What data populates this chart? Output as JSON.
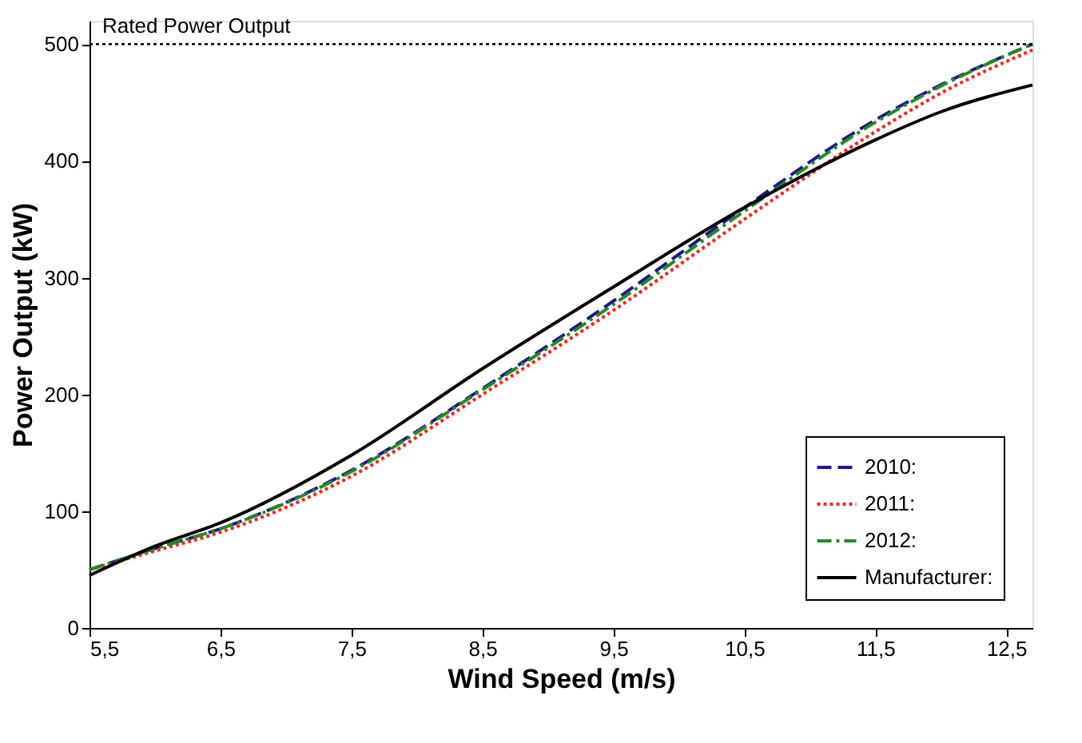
{
  "chart_data": {
    "type": "line",
    "xlabel": "Wind Speed (m/s)",
    "ylabel": "Power Output (kW)",
    "xlim": [
      5.5,
      12.7
    ],
    "ylim": [
      0,
      520
    ],
    "xticks": [
      {
        "value": 5.5,
        "label": "5,5"
      },
      {
        "value": 6.5,
        "label": "6,5"
      },
      {
        "value": 7.5,
        "label": "7,5"
      },
      {
        "value": 8.5,
        "label": "8,5"
      },
      {
        "value": 9.5,
        "label": "9,5"
      },
      {
        "value": 10.5,
        "label": "10,5"
      },
      {
        "value": 11.5,
        "label": "11,5"
      },
      {
        "value": 12.5,
        "label": "12,5"
      }
    ],
    "yticks": [
      0,
      100,
      200,
      300,
      400,
      500
    ],
    "x": [
      5.5,
      6.0,
      6.5,
      7.5,
      8.5,
      9.5,
      10.5,
      11.5,
      12.0,
      12.7
    ],
    "series": [
      {
        "name": "2010:",
        "color": "#1a1a8c",
        "line_style": "dashed",
        "values": [
          50,
          68,
          85,
          135,
          205,
          280,
          360,
          435,
          465,
          500
        ]
      },
      {
        "name": "2011:",
        "color": "#ff2020",
        "line_style": "dotted",
        "values": [
          50,
          66,
          82,
          130,
          200,
          272,
          350,
          425,
          458,
          495
        ]
      },
      {
        "name": "2012:",
        "color": "#228b22",
        "line_style": "dashdot",
        "values": [
          50,
          68,
          85,
          134,
          204,
          277,
          357,
          433,
          464,
          500
        ]
      },
      {
        "name": "Manufacturer:",
        "color": "#000000",
        "line_style": "solid",
        "values": [
          45,
          70,
          90,
          148,
          222,
          292,
          360,
          418,
          442,
          465
        ]
      }
    ],
    "ref_lines": [
      {
        "axis": "y",
        "value": 500,
        "label": "Rated Power Output",
        "color": "#000000",
        "line_style": "dotted"
      }
    ],
    "legend": "bottom right",
    "grid": false
  }
}
